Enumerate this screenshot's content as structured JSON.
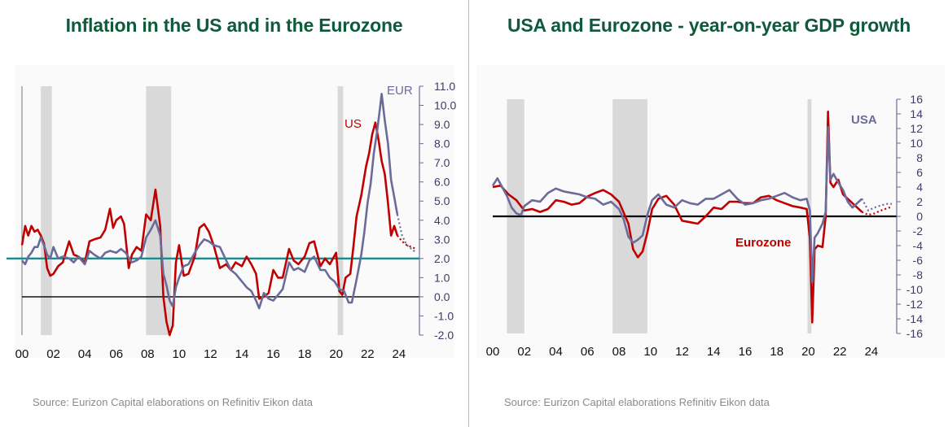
{
  "colors": {
    "title": "#0e5a3a",
    "eurozone": "#c00000",
    "usa": "#6b6b9a",
    "target": "#1a8c8c",
    "recession": "#d9d9d9"
  },
  "chart_data": [
    {
      "type": "line",
      "title": "Inflation in the US and in the Eurozone",
      "source": "Source: Eurizon Capital elaborations on Refinitiv Eikon data",
      "x_tick_labels": [
        "00",
        "02",
        "04",
        "06",
        "08",
        "10",
        "12",
        "14",
        "16",
        "18",
        "20",
        "22",
        "24"
      ],
      "xlim": [
        2000,
        2025.2
      ],
      "ylim": [
        -2.0,
        11.0
      ],
      "y_tick_labels": [
        "11.0",
        "10.0",
        "9.0",
        "8.0",
        "7.0",
        "6.0",
        "5.0",
        "4.0",
        "3.0",
        "2.0",
        "1.0",
        "0.0",
        "-1.0",
        "-2.0"
      ],
      "recessions": [
        [
          2001.2,
          2001.9
        ],
        [
          2007.9,
          2009.5
        ],
        [
          2020.1,
          2020.45
        ]
      ],
      "reference_line": 2.0,
      "series_labels": {
        "us": "US",
        "eur": "EUR"
      },
      "series": [
        {
          "name": "US",
          "color": "#c00000",
          "x": [
            2000,
            2000.2,
            2000.4,
            2000.6,
            2000.8,
            2001,
            2001.2,
            2001.4,
            2001.6,
            2001.8,
            2002,
            2002.3,
            2002.6,
            2003,
            2003.3,
            2003.6,
            2004,
            2004.3,
            2004.6,
            2005,
            2005.3,
            2005.6,
            2005.8,
            2006,
            2006.3,
            2006.5,
            2006.8,
            2007,
            2007.3,
            2007.6,
            2007.9,
            2008.2,
            2008.5,
            2008.8,
            2009,
            2009.2,
            2009.4,
            2009.6,
            2009.8,
            2010,
            2010.3,
            2010.6,
            2011,
            2011.3,
            2011.6,
            2011.9,
            2012.2,
            2012.6,
            2013,
            2013.3,
            2013.6,
            2014,
            2014.3,
            2014.6,
            2014.9,
            2015.1,
            2015.4,
            2015.7,
            2016,
            2016.3,
            2016.6,
            2017,
            2017.3,
            2017.6,
            2018,
            2018.3,
            2018.6,
            2019,
            2019.3,
            2019.6,
            2020,
            2020.2,
            2020.4,
            2020.6,
            2020.9,
            2021.1,
            2021.3,
            2021.6,
            2021.9,
            2022.1,
            2022.3,
            2022.5,
            2022.7,
            2022.9,
            2023.1,
            2023.3,
            2023.5,
            2023.7,
            2023.9
          ],
          "y": [
            2.7,
            3.7,
            3.2,
            3.7,
            3.4,
            3.5,
            3.2,
            2.8,
            1.5,
            1.1,
            1.2,
            1.6,
            1.8,
            2.9,
            2.2,
            2.1,
            1.8,
            2.9,
            3.0,
            3.1,
            3.5,
            4.6,
            3.6,
            4.0,
            4.2,
            3.8,
            1.5,
            2.2,
            2.6,
            2.4,
            4.3,
            4.0,
            5.6,
            3.7,
            0.0,
            -1.3,
            -2.0,
            -1.5,
            1.8,
            2.7,
            1.1,
            1.2,
            2.1,
            3.6,
            3.8,
            3.4,
            2.7,
            1.5,
            1.7,
            1.4,
            1.8,
            1.6,
            2.1,
            1.7,
            1.2,
            -0.1,
            0.0,
            0.2,
            1.4,
            1.0,
            1.0,
            2.5,
            1.9,
            1.7,
            2.1,
            2.8,
            2.9,
            1.6,
            2.0,
            1.7,
            2.3,
            0.3,
            0.1,
            1.0,
            1.2,
            2.6,
            4.2,
            5.3,
            6.8,
            7.5,
            8.5,
            9.1,
            8.2,
            7.1,
            6.4,
            4.9,
            3.2,
            3.7,
            3.2
          ]
        },
        {
          "name": "EUR",
          "color": "#6b6b9a",
          "x": [
            2000,
            2000.2,
            2000.4,
            2000.6,
            2000.8,
            2001,
            2001.2,
            2001.4,
            2001.6,
            2001.8,
            2002,
            2002.3,
            2002.6,
            2003,
            2003.3,
            2003.6,
            2004,
            2004.3,
            2004.6,
            2005,
            2005.3,
            2005.6,
            2006,
            2006.3,
            2006.6,
            2007,
            2007.3,
            2007.6,
            2007.9,
            2008.2,
            2008.5,
            2008.8,
            2009,
            2009.2,
            2009.4,
            2009.6,
            2009.8,
            2010,
            2010.3,
            2010.6,
            2011,
            2011.3,
            2011.6,
            2011.9,
            2012.2,
            2012.6,
            2013,
            2013.3,
            2013.6,
            2014,
            2014.3,
            2014.6,
            2014.9,
            2015.1,
            2015.4,
            2015.7,
            2016,
            2016.3,
            2016.6,
            2017,
            2017.3,
            2017.6,
            2018,
            2018.3,
            2018.6,
            2019,
            2019.3,
            2019.6,
            2019.9,
            2020.2,
            2020.5,
            2020.8,
            2021,
            2021.3,
            2021.6,
            2021.8,
            2022,
            2022.2,
            2022.4,
            2022.6,
            2022.8,
            2022.9,
            2023.1,
            2023.3,
            2023.5,
            2023.7,
            2023.9
          ],
          "y": [
            1.9,
            1.7,
            2.1,
            2.3,
            2.6,
            2.6,
            3.1,
            2.7,
            2.2,
            2.0,
            2.6,
            2.0,
            2.1,
            2.0,
            1.8,
            2.1,
            1.7,
            2.4,
            2.2,
            2.0,
            2.3,
            2.4,
            2.3,
            2.5,
            2.3,
            1.8,
            1.9,
            2.1,
            3.1,
            3.5,
            4.0,
            3.2,
            1.2,
            0.6,
            -0.2,
            -0.5,
            0.5,
            1.0,
            1.6,
            1.7,
            2.3,
            2.7,
            3.0,
            2.9,
            2.7,
            2.6,
            1.9,
            1.4,
            1.2,
            0.8,
            0.5,
            0.3,
            -0.2,
            -0.6,
            0.2,
            -0.1,
            -0.2,
            0.1,
            0.4,
            1.8,
            1.4,
            1.5,
            1.3,
            1.9,
            2.1,
            1.4,
            1.4,
            1.0,
            0.8,
            0.4,
            0.3,
            -0.3,
            -0.3,
            0.9,
            2.2,
            3.4,
            4.9,
            5.9,
            7.5,
            8.6,
            9.9,
            10.6,
            9.2,
            8.0,
            6.1,
            5.2,
            4.3
          ]
        },
        {
          "name": "US forecast",
          "color": "#c00000",
          "dashed": true,
          "x": [
            2023.9,
            2024.2,
            2024.5,
            2024.8,
            2025.1
          ],
          "y": [
            3.2,
            2.9,
            2.7,
            2.6,
            2.5
          ]
        },
        {
          "name": "EUR forecast",
          "color": "#6b6b9a",
          "dashed": true,
          "x": [
            2023.9,
            2024.2,
            2024.5,
            2024.8,
            2025.1
          ],
          "y": [
            4.3,
            3.2,
            2.7,
            2.5,
            2.3
          ]
        }
      ]
    },
    {
      "type": "line",
      "title": "USA and Eurozone - year-on-year GDP growth",
      "source": "Source: Eurizon Capital elaborations Refinitiv  Eikon data",
      "x_tick_labels": [
        "00",
        "02",
        "04",
        "06",
        "08",
        "10",
        "12",
        "14",
        "16",
        "18",
        "20",
        "22",
        "24"
      ],
      "xlim": [
        2000,
        2025.5
      ],
      "ylim": [
        -16,
        16
      ],
      "y_tick_labels": [
        "16",
        "14",
        "12",
        "10",
        "8",
        "6",
        "4",
        "2",
        "0",
        "-2",
        "-4",
        "-6",
        "-8",
        "-10",
        "-12",
        "-14",
        "-16"
      ],
      "recessions": [
        [
          2000.9,
          2002.0
        ],
        [
          2007.6,
          2009.8
        ],
        [
          2019.95,
          2020.2
        ]
      ],
      "series_labels": {
        "usa": "USA",
        "eurozone": "Eurozone"
      },
      "series": [
        {
          "name": "Eurozone",
          "color": "#c00000",
          "x": [
            2000,
            2000.5,
            2001,
            2001.5,
            2002,
            2002.5,
            2003,
            2003.5,
            2004,
            2004.5,
            2005,
            2005.5,
            2006,
            2006.5,
            2007,
            2007.5,
            2008,
            2008.3,
            2008.6,
            2008.9,
            2009.2,
            2009.5,
            2009.8,
            2010.1,
            2010.5,
            2011,
            2011.5,
            2012,
            2012.5,
            2013,
            2013.5,
            2014,
            2014.5,
            2015,
            2015.5,
            2016,
            2016.5,
            2017,
            2017.5,
            2018,
            2018.5,
            2019,
            2019.5,
            2019.9,
            2020.1,
            2020.25,
            2020.4,
            2020.6,
            2020.9,
            2021.1,
            2021.25,
            2021.4,
            2021.6,
            2021.9,
            2022.2,
            2022.5,
            2022.8,
            2023.1,
            2023.4
          ],
          "y": [
            4.0,
            4.2,
            3.0,
            2.2,
            0.8,
            1.0,
            0.6,
            1.0,
            2.2,
            2.0,
            1.6,
            1.8,
            2.7,
            3.2,
            3.6,
            3.0,
            2.0,
            0.5,
            -1.0,
            -4.5,
            -5.6,
            -4.8,
            -2.2,
            1.0,
            2.4,
            2.8,
            1.6,
            -0.6,
            -0.8,
            -1.0,
            0.0,
            1.2,
            1.0,
            2.0,
            2.0,
            1.8,
            1.8,
            2.6,
            2.8,
            2.2,
            1.8,
            1.4,
            1.2,
            1.0,
            -3.0,
            -14.5,
            -4.5,
            -4.0,
            -4.2,
            0.0,
            14.3,
            4.6,
            4.0,
            5.0,
            3.0,
            2.4,
            1.8,
            1.2,
            0.6
          ]
        },
        {
          "name": "USA",
          "color": "#6b6b9a",
          "x": [
            2000,
            2000.3,
            2000.6,
            2000.9,
            2001.2,
            2001.5,
            2001.8,
            2002,
            2002.5,
            2003,
            2003.5,
            2004,
            2004.5,
            2005,
            2005.5,
            2006,
            2006.5,
            2007,
            2007.5,
            2008,
            2008.3,
            2008.6,
            2008.9,
            2009.2,
            2009.5,
            2009.8,
            2010.1,
            2010.5,
            2011,
            2011.5,
            2012,
            2012.5,
            2013,
            2013.5,
            2014,
            2014.5,
            2015,
            2015.5,
            2016,
            2016.5,
            2017,
            2017.5,
            2018,
            2018.5,
            2019,
            2019.5,
            2019.9,
            2020.1,
            2020.25,
            2020.4,
            2020.6,
            2020.9,
            2021.1,
            2021.25,
            2021.4,
            2021.6,
            2021.9,
            2022.2,
            2022.5,
            2022.8,
            2023.1,
            2023.4
          ],
          "y": [
            4.2,
            5.2,
            4.0,
            2.8,
            1.2,
            0.4,
            0.2,
            1.4,
            2.2,
            2.0,
            3.2,
            3.8,
            3.4,
            3.2,
            3.0,
            2.6,
            2.4,
            1.6,
            2.0,
            1.0,
            -0.4,
            -2.8,
            -3.6,
            -3.2,
            -2.6,
            0.2,
            2.2,
            3.0,
            1.6,
            1.2,
            2.2,
            1.8,
            1.6,
            2.4,
            2.4,
            3.0,
            3.6,
            2.4,
            1.6,
            1.8,
            2.2,
            2.4,
            2.8,
            3.2,
            2.6,
            2.2,
            2.4,
            0.8,
            -9.0,
            -2.9,
            -2.3,
            -1.0,
            0.6,
            12.2,
            5.0,
            5.8,
            4.6,
            3.6,
            2.0,
            1.2,
            1.8,
            2.4
          ]
        },
        {
          "name": "Eurozone forecast",
          "color": "#c00000",
          "dashed": true,
          "x": [
            2023.4,
            2023.8,
            2024.2,
            2024.6,
            2025.0,
            2025.3
          ],
          "y": [
            0.6,
            0.2,
            0.4,
            0.8,
            1.1,
            1.3
          ]
        },
        {
          "name": "USA forecast",
          "color": "#6b6b9a",
          "dashed": true,
          "x": [
            2023.4,
            2023.8,
            2024.2,
            2024.6,
            2025.0,
            2025.3
          ],
          "y": [
            2.4,
            0.8,
            1.2,
            1.5,
            1.7,
            1.7
          ]
        }
      ]
    }
  ]
}
